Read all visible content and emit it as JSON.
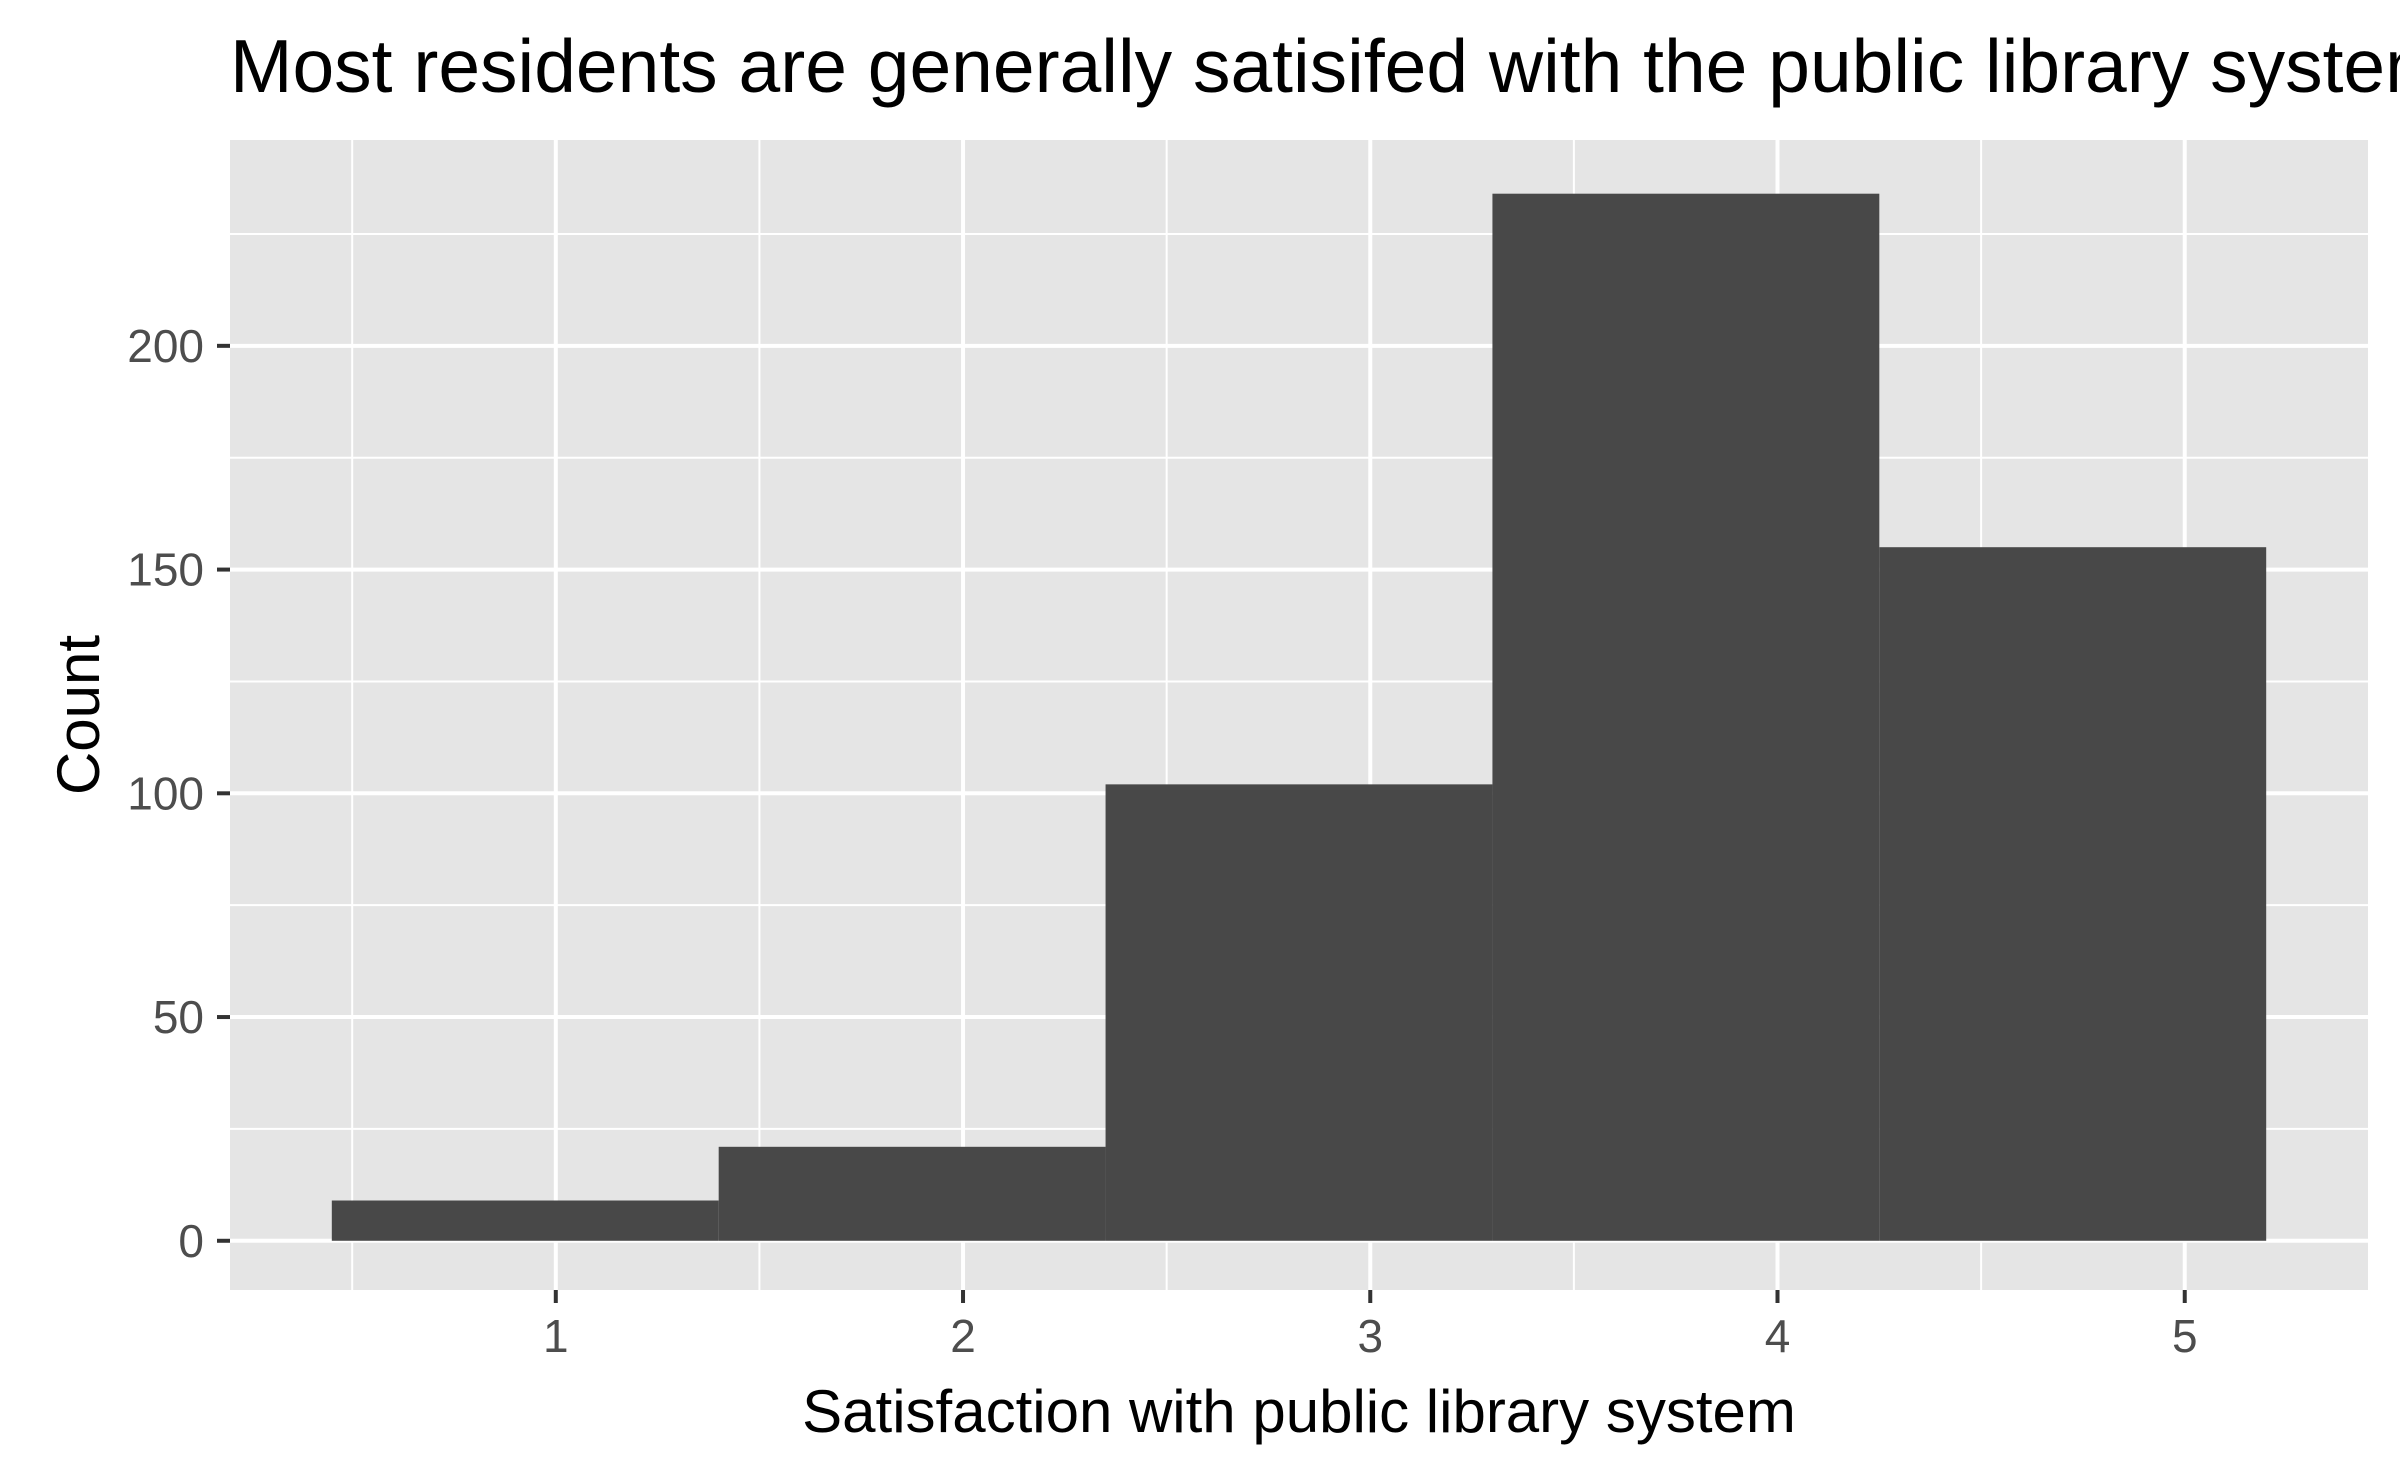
{
  "chart_data": {
    "type": "bar",
    "title": "Most residents are generally satisifed with the public library system",
    "xlabel": "Satisfaction with public library system",
    "ylabel": "Count",
    "x_ticks": [
      "1",
      "2",
      "3",
      "4",
      "5"
    ],
    "y_ticks": [
      "0",
      "50",
      "100",
      "150",
      "200"
    ],
    "xlim": [
      0.2,
      5.45
    ],
    "ylim": [
      -11,
      246
    ],
    "bins": [
      {
        "x_start": 0.45,
        "x_end": 1.4,
        "value": 9
      },
      {
        "x_start": 1.4,
        "x_end": 2.35,
        "value": 21
      },
      {
        "x_start": 2.35,
        "x_end": 3.3,
        "value": 102
      },
      {
        "x_start": 3.3,
        "x_end": 4.25,
        "value": 234
      },
      {
        "x_start": 4.25,
        "x_end": 5.2,
        "value": 155
      }
    ],
    "grid": true,
    "colors": {
      "panel_background": "#e5e5e5",
      "grid_line": "#ffffff",
      "bar_fill": "#484848",
      "tick_text": "#4d4d4d",
      "tick_mark": "#333333"
    }
  }
}
